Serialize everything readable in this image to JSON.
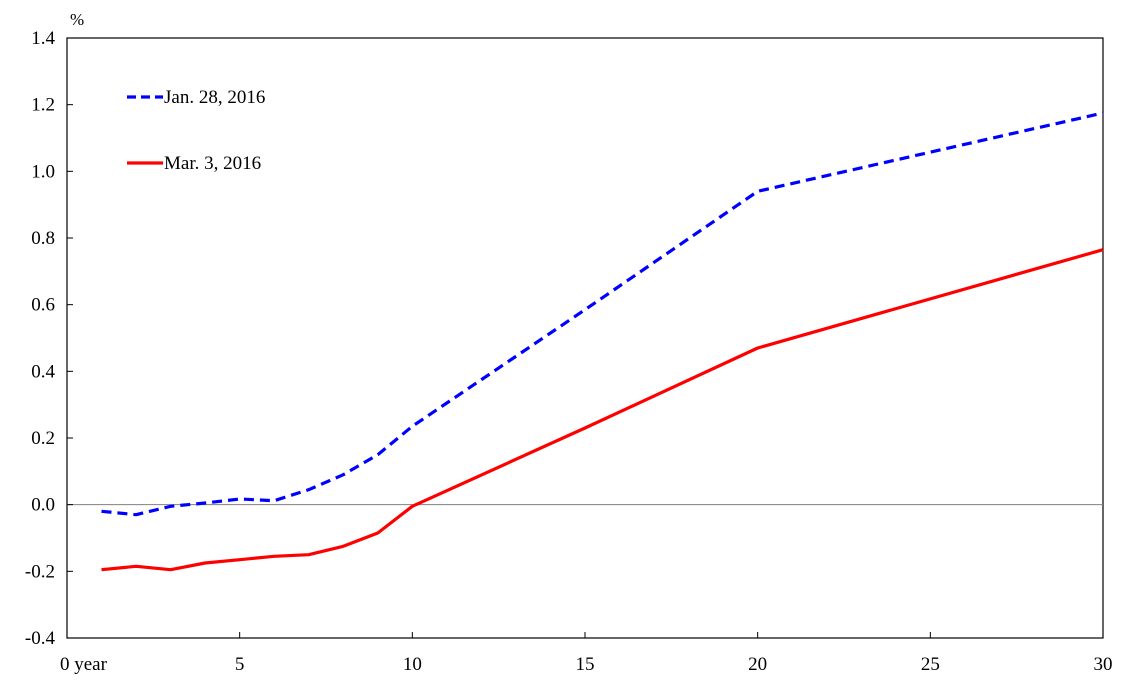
{
  "chart_data": {
    "type": "line",
    "title": "",
    "ylabel": "%",
    "xlabel": "",
    "xlim": [
      0,
      30
    ],
    "ylim": [
      -0.4,
      1.4
    ],
    "x_ticks": [
      0,
      5,
      10,
      15,
      20,
      25,
      30
    ],
    "x_tick_labels": [
      "0 year",
      "5",
      "10",
      "15",
      "20",
      "25",
      "30"
    ],
    "y_ticks": [
      -0.4,
      -0.2,
      0.0,
      0.2,
      0.4,
      0.6,
      0.8,
      1.0,
      1.2,
      1.4
    ],
    "y_tick_labels": [
      "-0.4",
      "-0.2",
      "0.0",
      "0.2",
      "0.4",
      "0.6",
      "0.8",
      "1.0",
      "1.2",
      "1.4"
    ],
    "grid": false,
    "zero_line": true,
    "legend_position": "top-left",
    "series": [
      {
        "name": "Jan. 28, 2016",
        "color": "#0000ff",
        "style": "dashed",
        "x": [
          1,
          2,
          3,
          4,
          5,
          6,
          7,
          8,
          9,
          10,
          15,
          20,
          30
        ],
        "y": [
          -0.02,
          -0.03,
          -0.005,
          0.005,
          0.017,
          0.012,
          0.045,
          0.09,
          0.15,
          0.235,
          0.585,
          0.94,
          1.175
        ]
      },
      {
        "name": "Mar. 3, 2016",
        "color": "#ff0000",
        "style": "solid",
        "x": [
          1,
          2,
          3,
          4,
          5,
          6,
          7,
          8,
          9,
          10,
          15,
          20,
          30
        ],
        "y": [
          -0.195,
          -0.185,
          -0.195,
          -0.175,
          -0.165,
          -0.155,
          -0.15,
          -0.125,
          -0.085,
          -0.005,
          0.23,
          0.47,
          0.765
        ]
      }
    ]
  }
}
